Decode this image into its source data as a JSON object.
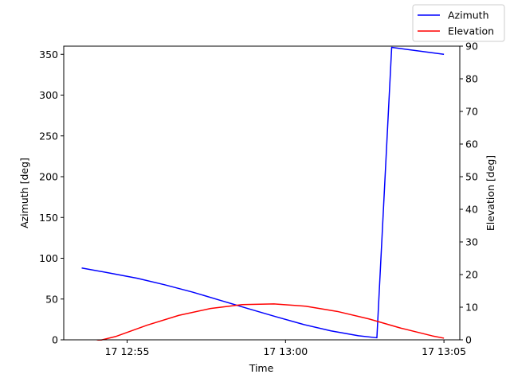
{
  "chart_data": {
    "type": "line",
    "xlabel": "Time",
    "ylabel_left": "Azimuth [deg]",
    "ylabel_right": "Elevation [deg]",
    "xlim": [
      "12:53:00",
      "13:05:30"
    ],
    "ylim_left": [
      0,
      360
    ],
    "ylim_right": [
      0,
      90
    ],
    "x_ticks": [
      {
        "time": "12:55:00",
        "label": "17 12:55"
      },
      {
        "time": "13:00:00",
        "label": "17 13:00"
      },
      {
        "time": "13:05:00",
        "label": "17 13:05"
      }
    ],
    "y_ticks_left": [
      0,
      50,
      100,
      150,
      200,
      250,
      300,
      350
    ],
    "y_ticks_right": [
      0,
      10,
      20,
      30,
      40,
      50,
      60,
      70,
      80,
      90
    ],
    "grid": false,
    "legend_position": "top-right, outside plot",
    "series": [
      {
        "name": "Azimuth",
        "axis": "left",
        "color": "#0000ff",
        "points": [
          [
            "12:53:34",
            88
          ],
          [
            "12:54:26",
            82
          ],
          [
            "12:55:19",
            75.5
          ],
          [
            "12:56:11",
            67.5
          ],
          [
            "12:57:04",
            58.5
          ],
          [
            "12:57:56",
            48.5
          ],
          [
            "12:58:48",
            38.5
          ],
          [
            "12:59:41",
            28.5
          ],
          [
            "13:00:33",
            19
          ],
          [
            "13:01:26",
            11
          ],
          [
            "13:02:18",
            5
          ],
          [
            "13:02:53",
            2.5
          ],
          [
            "13:03:21",
            358.5
          ],
          [
            "13:05:00",
            350
          ]
        ]
      },
      {
        "name": "Elevation",
        "axis": "right",
        "color": "#ff0000",
        "points": [
          [
            "12:54:00",
            -0.5
          ],
          [
            "12:54:38",
            1
          ],
          [
            "12:55:38",
            4.5
          ],
          [
            "12:56:38",
            7.5
          ],
          [
            "12:57:38",
            9.6
          ],
          [
            "12:58:38",
            10.8
          ],
          [
            "12:59:38",
            11
          ],
          [
            "13:00:38",
            10.3
          ],
          [
            "13:01:38",
            8.7
          ],
          [
            "13:02:38",
            6.4
          ],
          [
            "13:03:38",
            3.6
          ],
          [
            "13:04:38",
            1.2
          ],
          [
            "13:05:00",
            0.5
          ]
        ]
      }
    ]
  }
}
